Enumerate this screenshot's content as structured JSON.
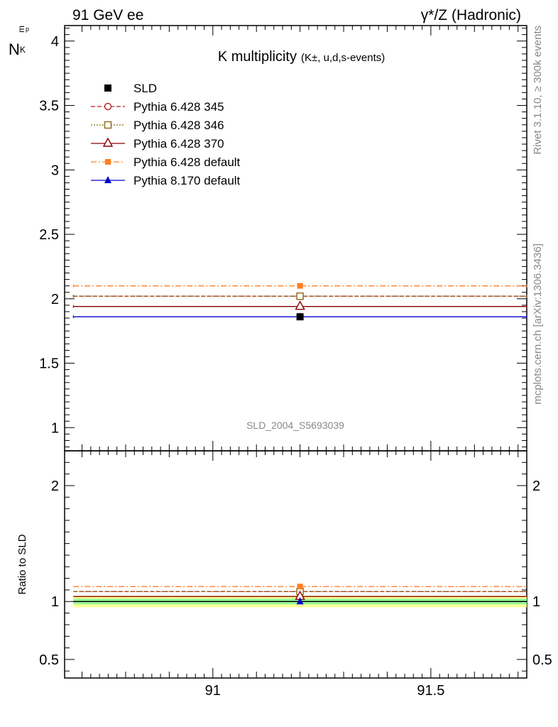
{
  "header": {
    "left": "91 GeV ee",
    "right": "γ*/Z (Hadronic)"
  },
  "side": {
    "rivet": "Rivet 3.1.10, ≥ 300k events",
    "mcplots": "mcplots.cern.ch [arXiv:1306.3436]"
  },
  "chart_data": {
    "type": "line",
    "title_main": "K multiplicity",
    "title_sub": "(K±, u,d,s-events)",
    "ylabel_main": "N",
    "ylabel_sub": "K",
    "ylabel_sup": "p",
    "ylabel_sub2": "m",
    "ylabel_ratio": "Ratio to SLD",
    "watermark": "SLD_2004_S5693039",
    "x_range": [
      90.66,
      91.72
    ],
    "x_bin": [
      90.68,
      91.72
    ],
    "x_point": 91.2,
    "x_ticks": [
      "91",
      "91.5"
    ],
    "main": {
      "ylim": [
        0.82,
        4.12
      ],
      "y_ticks": [
        "1",
        "1.5",
        "2",
        "2.5",
        "3",
        "3.5",
        "4"
      ]
    },
    "ratio": {
      "ylim": [
        0.34,
        2.3
      ],
      "y_ticks": [
        "0.5",
        "1",
        "2"
      ]
    },
    "series": [
      {
        "name": "SLD",
        "value": 1.86,
        "color": "#000000",
        "marker": "square-filled",
        "dash": "none",
        "is_data": true
      },
      {
        "name": "Pythia 6.428 345",
        "value": 2.02,
        "color": "#b22222",
        "marker": "circle-open",
        "dash": "dashed"
      },
      {
        "name": "Pythia 6.428 346",
        "value": 2.02,
        "color": "#8b6914",
        "marker": "square-open",
        "dash": "dotted"
      },
      {
        "name": "Pythia 6.428 370",
        "value": 1.94,
        "color": "#8b0000",
        "marker": "triangle-open",
        "dash": "solid"
      },
      {
        "name": "Pythia 6.428 default",
        "value": 2.1,
        "color": "#ff7f24",
        "marker": "square-filled-small",
        "dash": "dashdot"
      },
      {
        "name": "Pythia 8.170 default",
        "value": 1.86,
        "color": "#0000cd",
        "marker": "triangle-filled",
        "dash": "solid"
      }
    ],
    "ratio_bands": {
      "outer": [
        0.95,
        1.05
      ],
      "inner": [
        0.975,
        1.025
      ],
      "outer_color": "#ffff99",
      "inner_color": "#99ff99"
    }
  }
}
